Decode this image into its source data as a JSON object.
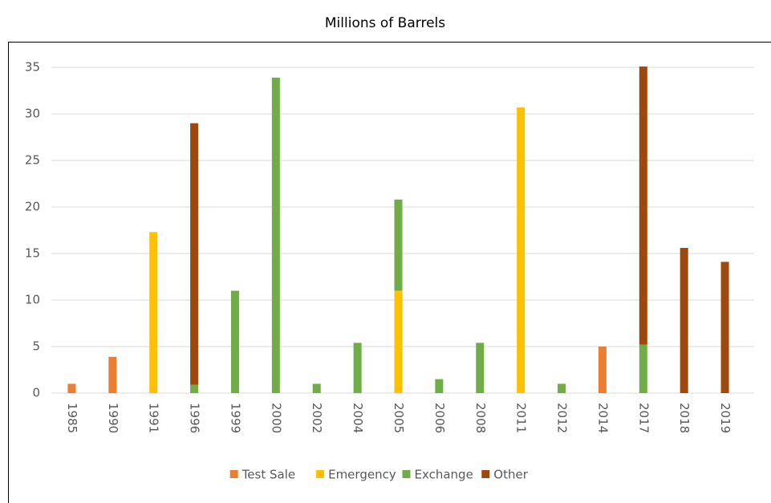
{
  "chart_data": {
    "type": "stacked_bar",
    "subtitle": "Millions of Barrels",
    "categories": [
      "1985",
      "1990",
      "1991",
      "1996",
      "1999",
      "2000",
      "2002",
      "2004",
      "2005",
      "2006",
      "2008",
      "2011",
      "2012",
      "2014",
      "2017",
      "2018",
      "2019"
    ],
    "series": [
      {
        "name": "Test Sale",
        "color": "#ED7D31",
        "values": [
          1,
          3.9,
          null,
          null,
          null,
          null,
          null,
          null,
          null,
          null,
          null,
          null,
          null,
          5,
          null,
          null,
          null
        ]
      },
      {
        "name": "Emergency",
        "color": "#FFC000",
        "values": [
          null,
          null,
          17.3,
          null,
          null,
          null,
          null,
          null,
          11,
          null,
          null,
          30.7,
          null,
          null,
          null,
          null,
          null
        ]
      },
      {
        "name": "Exchange",
        "color": "#70AD47",
        "values": [
          null,
          null,
          null,
          0.9,
          11,
          33.9,
          1,
          5.4,
          9.8,
          1.5,
          5.4,
          null,
          1,
          null,
          5.2,
          null,
          null
        ]
      },
      {
        "name": "Other",
        "color": "#9E480E",
        "values": [
          null,
          null,
          null,
          28.1,
          null,
          null,
          null,
          null,
          null,
          null,
          null,
          null,
          null,
          null,
          29.9,
          15.6,
          14.1
        ]
      }
    ],
    "ylim": [
      0,
      35
    ],
    "yticks": [
      0,
      5,
      10,
      15,
      20,
      25,
      30,
      35
    ],
    "grid": true,
    "legend": "bottom"
  }
}
